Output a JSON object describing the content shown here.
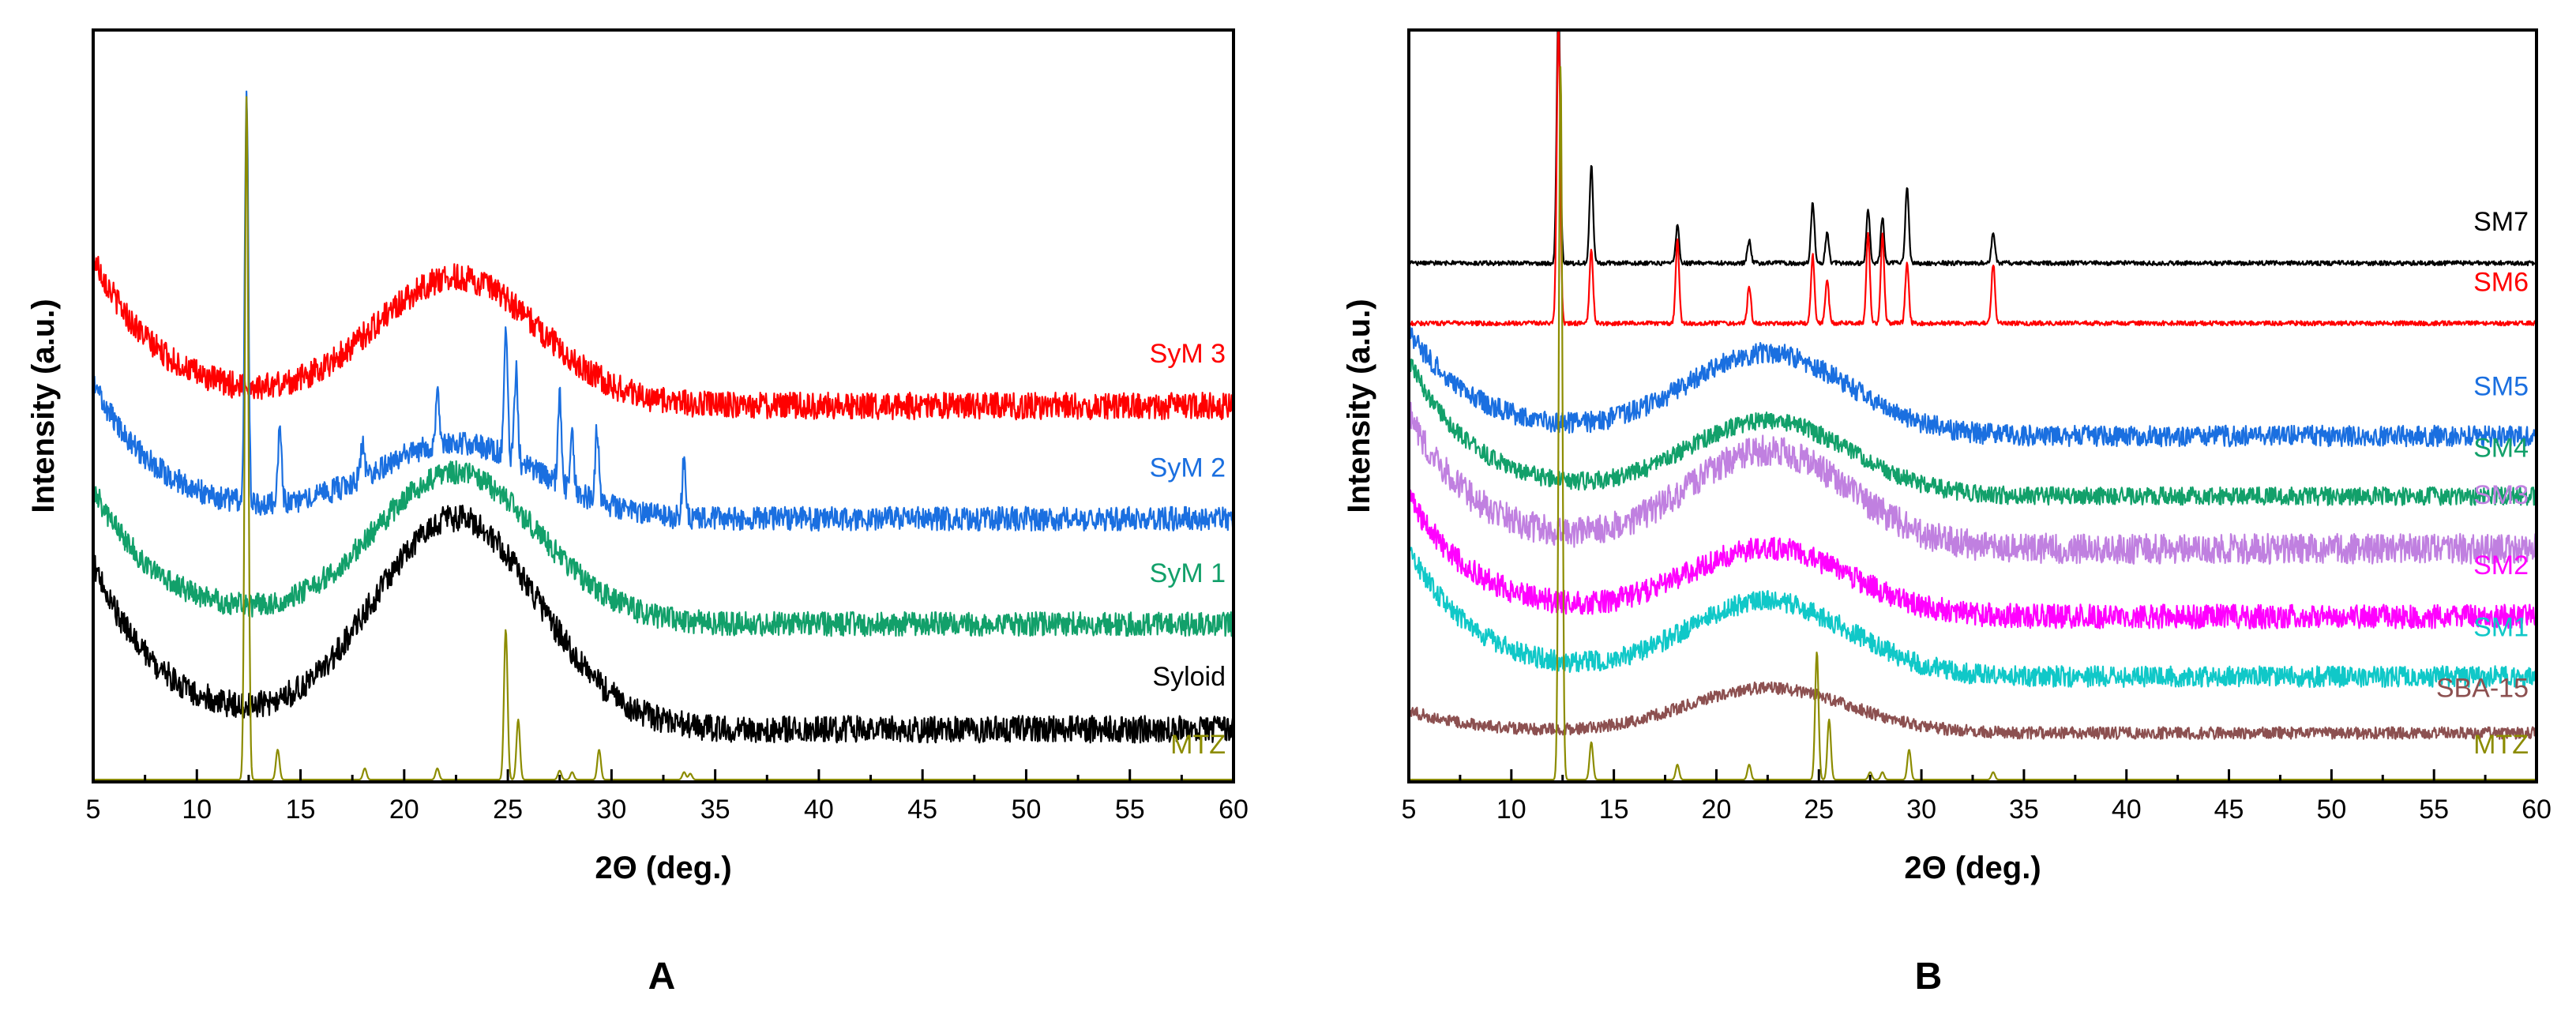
{
  "chart_data": [
    {
      "panel": "A",
      "type": "line",
      "xlabel": "2Θ (deg.)",
      "ylabel": "Intensity (a.u.)",
      "xlim": [
        5,
        60
      ],
      "xticks": [
        5,
        10,
        15,
        20,
        25,
        30,
        35,
        40,
        45,
        50,
        55,
        60
      ],
      "series": [
        {
          "name": "SyM 3",
          "color": "#ff0000",
          "offset": 0.5,
          "amorphous": 0.17,
          "start": 0.2,
          "noise": 0.018,
          "peaks": []
        },
        {
          "name": "SyM 2",
          "color": "#1a6fe0",
          "offset": 0.35,
          "amorphous": 0.1,
          "start": 0.18,
          "noise": 0.016,
          "peaks": [
            [
              12.4,
              0.55
            ],
            [
              14.0,
              0.1
            ],
            [
              18.0,
              0.05
            ],
            [
              21.6,
              0.07
            ],
            [
              24.9,
              0.16
            ],
            [
              25.4,
              0.12
            ],
            [
              27.5,
              0.12
            ],
            [
              28.1,
              0.08
            ],
            [
              29.3,
              0.1
            ],
            [
              33.5,
              0.08
            ]
          ]
        },
        {
          "name": "SyM 1",
          "color": "#12a06a",
          "offset": 0.21,
          "amorphous": 0.2,
          "start": 0.18,
          "noise": 0.016,
          "peaks": []
        },
        {
          "name": "Syloid",
          "color": "#000000",
          "offset": 0.07,
          "amorphous": 0.28,
          "start": 0.22,
          "noise": 0.018,
          "peaks": []
        },
        {
          "name": "MTZ",
          "color": "#8c8c00",
          "offset": 0.003,
          "amorphous": 0.0,
          "start": 0.0,
          "noise": 0.0,
          "peaks": [
            [
              12.4,
              0.91
            ],
            [
              13.9,
              0.04
            ],
            [
              18.1,
              0.015
            ],
            [
              21.6,
              0.015
            ],
            [
              24.9,
              0.2
            ],
            [
              25.5,
              0.08
            ],
            [
              27.5,
              0.012
            ],
            [
              28.1,
              0.01
            ],
            [
              29.4,
              0.04
            ],
            [
              33.5,
              0.01
            ],
            [
              33.8,
              0.008
            ]
          ]
        }
      ]
    },
    {
      "panel": "B",
      "type": "line",
      "xlabel": "2Θ (deg.)",
      "ylabel": "Intensity (a.u.)",
      "xlim": [
        5,
        60
      ],
      "xticks": [
        5,
        10,
        15,
        20,
        25,
        30,
        35,
        40,
        45,
        50,
        55,
        60
      ],
      "series": [
        {
          "name": "SM7",
          "color": "#000000",
          "offset": 0.69,
          "amorphous": 0.0,
          "start": 0.0,
          "noise": 0.003,
          "peaks": [
            [
              12.3,
              0.35
            ],
            [
              13.9,
              0.13
            ],
            [
              18.1,
              0.05
            ],
            [
              21.6,
              0.03
            ],
            [
              24.7,
              0.08
            ],
            [
              25.4,
              0.04
            ],
            [
              27.4,
              0.07
            ],
            [
              28.1,
              0.06
            ],
            [
              29.3,
              0.1
            ],
            [
              33.5,
              0.04
            ]
          ]
        },
        {
          "name": "SM6",
          "color": "#ff0000",
          "offset": 0.61,
          "amorphous": 0.0,
          "start": 0.0,
          "noise": 0.003,
          "peaks": [
            [
              12.3,
              0.4
            ],
            [
              13.9,
              0.1
            ],
            [
              18.1,
              0.11
            ],
            [
              21.6,
              0.05
            ],
            [
              24.7,
              0.09
            ],
            [
              25.4,
              0.06
            ],
            [
              27.4,
              0.12
            ],
            [
              28.1,
              0.12
            ],
            [
              29.3,
              0.08
            ],
            [
              33.5,
              0.08
            ]
          ]
        },
        {
          "name": "SM5",
          "color": "#1a6fe0",
          "offset": 0.46,
          "amorphous": 0.11,
          "start": 0.14,
          "noise": 0.014,
          "peaks": []
        },
        {
          "name": "SM4",
          "color": "#12a06a",
          "offset": 0.38,
          "amorphous": 0.1,
          "start": 0.18,
          "noise": 0.012,
          "peaks": []
        },
        {
          "name": "SM3",
          "color": "#c080e0",
          "offset": 0.31,
          "amorphous": 0.13,
          "start": 0.18,
          "noise": 0.02,
          "peaks": []
        },
        {
          "name": "SM2",
          "color": "#ff00ff",
          "offset": 0.22,
          "amorphous": 0.09,
          "start": 0.16,
          "noise": 0.016,
          "peaks": []
        },
        {
          "name": "SM1",
          "color": "#10c8c8",
          "offset": 0.14,
          "amorphous": 0.1,
          "start": 0.17,
          "noise": 0.014,
          "peaks": []
        },
        {
          "name": "SBA-15",
          "color": "#8c5050",
          "offset": 0.065,
          "amorphous": 0.06,
          "start": 0.03,
          "noise": 0.008,
          "peaks": []
        },
        {
          "name": "MTZ",
          "color": "#8c8c00",
          "offset": 0.003,
          "amorphous": 0.0,
          "start": 0.0,
          "noise": 0.0,
          "peaks": [
            [
              12.4,
              0.95
            ],
            [
              13.9,
              0.05
            ],
            [
              18.1,
              0.02
            ],
            [
              21.6,
              0.02
            ],
            [
              24.9,
              0.17
            ],
            [
              25.5,
              0.08
            ],
            [
              27.5,
              0.01
            ],
            [
              28.1,
              0.01
            ],
            [
              29.4,
              0.04
            ],
            [
              33.5,
              0.01
            ]
          ]
        }
      ]
    }
  ],
  "panel_letters": {
    "a": "A",
    "b": "B"
  }
}
